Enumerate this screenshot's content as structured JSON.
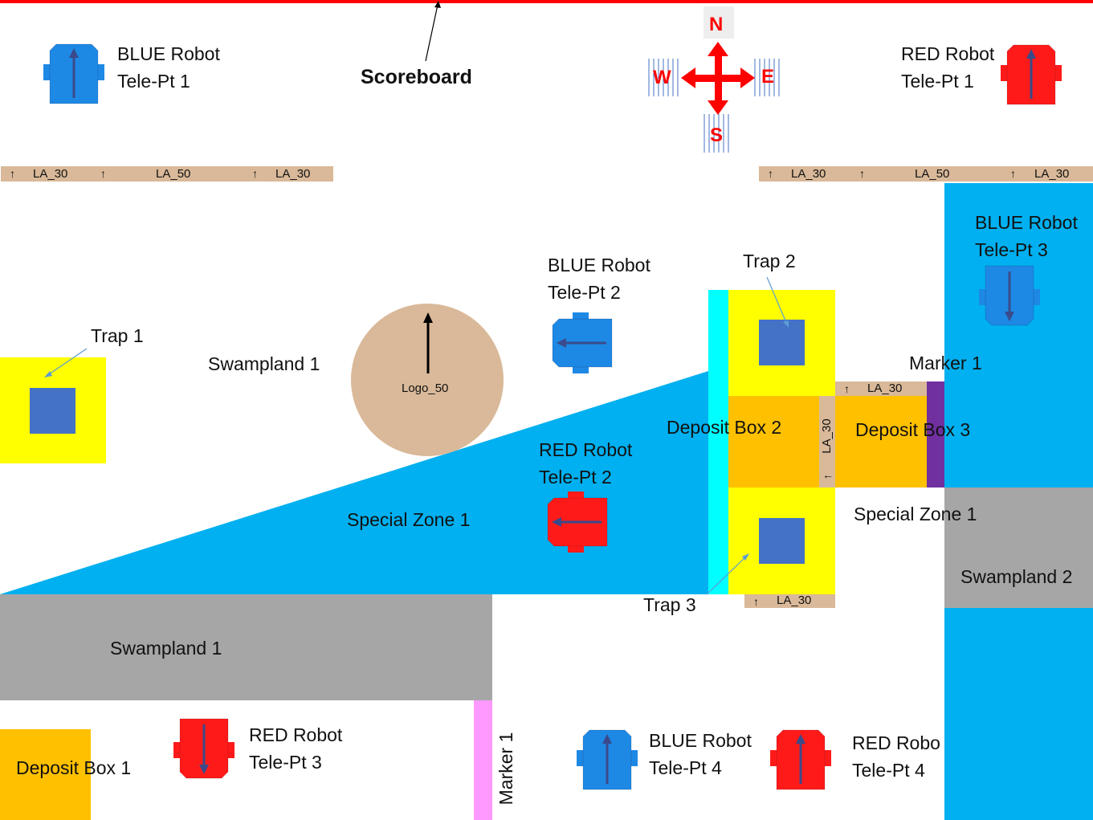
{
  "scoreboard": {
    "label": "Scoreboard"
  },
  "compass": {
    "n": "N",
    "s": "S",
    "e": "E",
    "w": "W"
  },
  "robots": {
    "blue1": [
      "BLUE Robot",
      "Tele-Pt 1"
    ],
    "red1": [
      "RED Robot",
      "Tele-Pt 1"
    ],
    "blue2": [
      "BLUE Robot",
      "Tele-Pt 2"
    ],
    "red2": [
      "RED Robot",
      "Tele-Pt 2"
    ],
    "blue3": [
      "BLUE Robot",
      "Tele-Pt 3"
    ],
    "red3": [
      "RED Robot",
      "Tele-Pt 3"
    ],
    "blue4": [
      "BLUE Robot",
      "Tele-Pt 4"
    ],
    "red4": [
      "RED Robo",
      "Tele-Pt 4"
    ]
  },
  "zones": {
    "trap1": "Trap 1",
    "trap2": "Trap 2",
    "trap3": "Trap 3",
    "swamp1_top": "Swampland 1",
    "swamp1_bottom": "Swampland 1",
    "swamp2": "Swampland 2",
    "special1_left": "Special Zone 1",
    "special1_right": "Special Zone 1",
    "deposit1": "Deposit Box 1",
    "deposit2": "Deposit Box 2",
    "deposit3": "Deposit Box 3",
    "marker1_right": "Marker 1",
    "marker1_bottom": "Marker 1",
    "logo": "Logo_50"
  },
  "la": {
    "tl1": "LA_30",
    "tl2": "LA_50",
    "tl3": "LA_30",
    "tr1": "LA_30",
    "tr2": "LA_50",
    "tr3": "LA_30",
    "dep3": "LA_30",
    "vert": "LA_30",
    "trap3": "LA_30"
  },
  "colors": {
    "blue_robot": "#1e88e5",
    "red_robot": "#ff1a1a",
    "special_zone": "#00b0f0",
    "trap_bg": "#ffff00",
    "trap_box": "#4472c4",
    "swamp": "#a6a6a6",
    "deposit": "#ffc000",
    "la_bar": "#d9b999",
    "marker_purple": "#7030a0",
    "marker_pink": "#ff99ff",
    "cyan_strip": "#00ffff"
  }
}
